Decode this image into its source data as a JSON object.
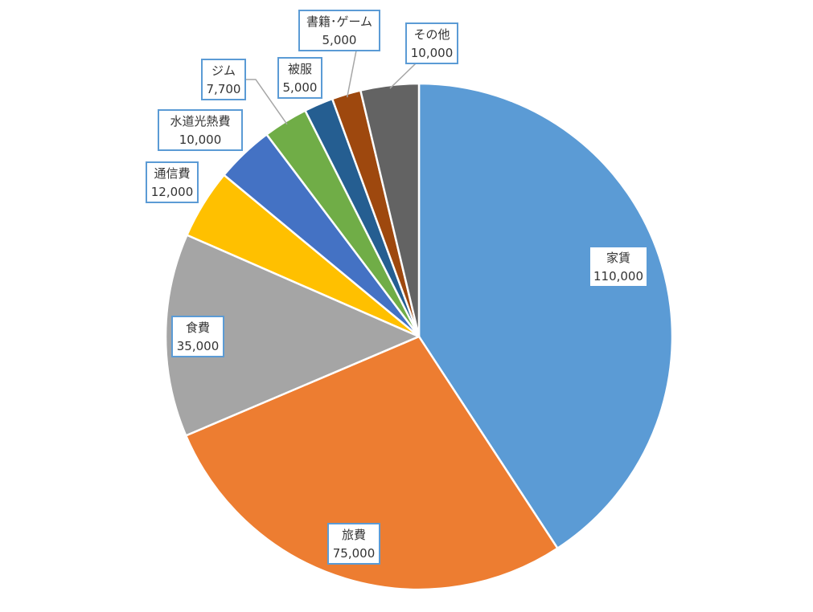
{
  "chart_data": {
    "type": "pie",
    "title": "",
    "start": "12 o'clock, clockwise",
    "slices": [
      {
        "label": "家賃",
        "value": 110000,
        "display": "110,000",
        "color": "#5b9bd5"
      },
      {
        "label": "旅費",
        "value": 75000,
        "display": "75,000",
        "color": "#ed7d31"
      },
      {
        "label": "食費",
        "value": 35000,
        "display": "35,000",
        "color": "#a5a5a5"
      },
      {
        "label": "通信費",
        "value": 12000,
        "display": "12,000",
        "color": "#ffc000"
      },
      {
        "label": "水道光熱費",
        "value": 10000,
        "display": "10,000",
        "color": "#4472c4"
      },
      {
        "label": "ジム",
        "value": 7700,
        "display": "7,700",
        "color": "#70ad47"
      },
      {
        "label": "被服",
        "value": 5000,
        "display": "5,000",
        "color": "#255e91"
      },
      {
        "label": "書籍･ゲーム",
        "value": 5000,
        "display": "5,000",
        "color": "#9e480e"
      },
      {
        "label": "その他",
        "value": 10000,
        "display": "10,000",
        "color": "#636363"
      }
    ]
  }
}
